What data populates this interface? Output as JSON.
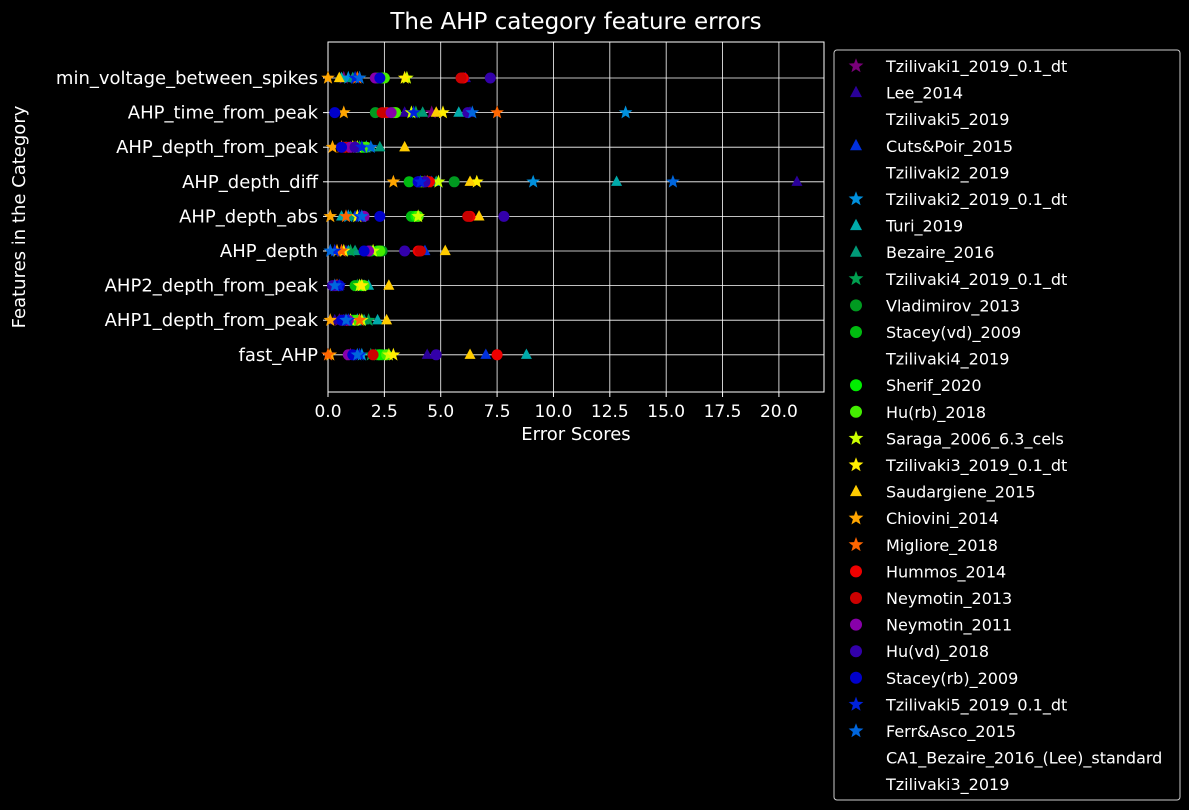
{
  "chart_data": {
    "type": "scatter",
    "title": "The AHP category feature errors",
    "xlabel": "Error Scores",
    "ylabel": "Features in the Category",
    "xlim": [
      0,
      22
    ],
    "xticks": [
      "0.0",
      "2.5",
      "5.0",
      "7.5",
      "10.0",
      "12.5",
      "15.0",
      "17.5",
      "20.0"
    ],
    "grid": true,
    "legend_position": "right, outside plot",
    "categories": [
      "min_voltage_between_spikes",
      "AHP_time_from_peak",
      "AHP_depth_from_peak",
      "AHP_depth_diff",
      "AHP_depth_abs",
      "AHP_depth",
      "AHP2_depth_from_peak",
      "AHP1_depth_from_peak",
      "fast_AHP"
    ],
    "series": [
      {
        "name": "Tzilivaki1_2019_0.1_dt",
        "marker": "star",
        "color": "#7a007a",
        "values": [
          0.7,
          4.6,
          1.2,
          4.3,
          1.5,
          0.6,
          0.4,
          0.5,
          1.0
        ]
      },
      {
        "name": "Lee_2014",
        "marker": "triangle",
        "color": "#2a0099",
        "values": [
          6.1,
          3.4,
          1.0,
          20.8,
          1.6,
          0.8,
          0.5,
          0.3,
          4.4
        ]
      },
      {
        "name": "Tzilivaki5_2019",
        "marker": "none",
        "color": "#000000",
        "values": [
          null,
          null,
          null,
          null,
          null,
          null,
          null,
          null,
          null
        ]
      },
      {
        "name": "Cuts&Poir_2015",
        "marker": "triangle",
        "color": "#0030dd",
        "values": [
          1.2,
          6.3,
          0.8,
          4.6,
          1.2,
          4.3,
          0.3,
          0.7,
          7.0
        ]
      },
      {
        "name": "Tzilivaki2_2019",
        "marker": "none",
        "color": "#000000",
        "values": [
          null,
          null,
          null,
          null,
          null,
          null,
          null,
          null,
          null
        ]
      },
      {
        "name": "Tzilivaki2_2019_0.1_dt",
        "marker": "star",
        "color": "#0090dd",
        "values": [
          0.9,
          13.2,
          1.7,
          9.1,
          0.9,
          0.1,
          1.5,
          1.3,
          1.5
        ]
      },
      {
        "name": "Turi_2019",
        "marker": "triangle",
        "color": "#00aaaa",
        "values": [
          0.6,
          5.8,
          1.9,
          12.8,
          0.6,
          0.9,
          1.8,
          2.2,
          8.8
        ]
      },
      {
        "name": "Bezaire_2016",
        "marker": "triangle",
        "color": "#009a78",
        "values": [
          1.1,
          4.2,
          2.3,
          4.8,
          1.0,
          1.2,
          1.6,
          1.6,
          2.1
        ]
      },
      {
        "name": "Tzilivaki4_2019_0.1_dt",
        "marker": "star",
        "color": "#00a050",
        "values": [
          1.4,
          3.9,
          1.4,
          4.9,
          1.3,
          1.0,
          1.3,
          1.8,
          1.9
        ]
      },
      {
        "name": "Vladimirov_2013",
        "marker": "circle",
        "color": "#009a20",
        "values": [
          2.3,
          2.1,
          1.5,
          5.6,
          3.8,
          2.4,
          1.4,
          1.1,
          2.2
        ]
      },
      {
        "name": "Stacey(vd)_2009",
        "marker": "circle",
        "color": "#00bb10",
        "values": [
          2.2,
          2.6,
          1.3,
          3.6,
          3.7,
          1.9,
          1.2,
          1.0,
          2.4
        ]
      },
      {
        "name": "Tzilivaki4_2019",
        "marker": "none",
        "color": "#000000",
        "values": [
          null,
          null,
          null,
          null,
          null,
          null,
          null,
          null,
          null
        ]
      },
      {
        "name": "Sherif_2020",
        "marker": "circle",
        "color": "#00ee00",
        "values": [
          2.4,
          2.9,
          1.6,
          4.1,
          3.9,
          2.2,
          1.5,
          1.2,
          2.3
        ]
      },
      {
        "name": "Hu(rb)_2018",
        "marker": "circle",
        "color": "#44ee00",
        "values": [
          2.5,
          3.0,
          1.7,
          4.2,
          4.0,
          2.3,
          1.6,
          1.3,
          2.6
        ]
      },
      {
        "name": "Saraga_2006_6.3_cels",
        "marker": "star",
        "color": "#ccff00",
        "values": [
          3.5,
          3.7,
          1.3,
          4.9,
          4.0,
          2.0,
          1.4,
          1.5,
          2.7
        ]
      },
      {
        "name": "Tzilivaki3_2019_0.1_dt",
        "marker": "star",
        "color": "#ffee00",
        "values": [
          3.4,
          5.1,
          1.1,
          6.6,
          1.3,
          0.7,
          1.5,
          1.0,
          2.9
        ]
      },
      {
        "name": "Saudargiene_2015",
        "marker": "triangle",
        "color": "#ffcc00",
        "values": [
          0.5,
          4.8,
          3.4,
          6.3,
          6.7,
          5.2,
          2.7,
          2.6,
          6.3
        ]
      },
      {
        "name": "Chiovini_2014",
        "marker": "star",
        "color": "#ffa500",
        "values": [
          0.0,
          0.7,
          0.2,
          2.9,
          0.1,
          0.4,
          0.3,
          0.1,
          0.1
        ]
      },
      {
        "name": "Migliore_2018",
        "marker": "star",
        "color": "#ff6600",
        "values": [
          1.3,
          7.5,
          0.6,
          4.4,
          0.8,
          0.6,
          0.4,
          1.4,
          0.0
        ]
      },
      {
        "name": "Hummos_2014",
        "marker": "circle",
        "color": "#ee0000",
        "values": [
          6.0,
          2.6,
          0.7,
          4.5,
          6.3,
          4.0,
          0.4,
          0.6,
          7.5
        ]
      },
      {
        "name": "Neymotin_2013",
        "marker": "circle",
        "color": "#cc0000",
        "values": [
          5.9,
          2.4,
          0.9,
          4.3,
          6.2,
          4.1,
          0.5,
          0.8,
          2.0
        ]
      },
      {
        "name": "Neymotin_2011",
        "marker": "circle",
        "color": "#8800aa",
        "values": [
          2.1,
          2.8,
          1.0,
          4.0,
          1.6,
          1.8,
          0.3,
          0.9,
          0.9
        ]
      },
      {
        "name": "Hu(vd)_2018",
        "marker": "circle",
        "color": "#3300aa",
        "values": [
          7.2,
          6.2,
          1.2,
          4.3,
          7.8,
          3.4,
          0.2,
          0.7,
          4.8
        ]
      },
      {
        "name": "Stacey(rb)_2009",
        "marker": "circle",
        "color": "#0000cc",
        "values": [
          2.3,
          0.3,
          0.6,
          4.0,
          2.3,
          1.6,
          0.5,
          0.6,
          1.1
        ]
      },
      {
        "name": "Tzilivaki5_2019_0.1_dt",
        "marker": "star",
        "color": "#0022dd",
        "values": [
          1.2,
          3.8,
          1.5,
          4.1,
          1.4,
          0.3,
          0.5,
          0.9,
          1.4
        ]
      },
      {
        "name": "Ferr&Asco_2015",
        "marker": "star",
        "color": "#0066dd",
        "values": [
          1.4,
          6.4,
          1.9,
          15.3,
          1.5,
          0.1,
          0.3,
          0.8,
          1.3
        ]
      },
      {
        "name": "CA1_Bezaire_2016_(Lee)_standard",
        "marker": "none",
        "color": "#000000",
        "values": [
          null,
          null,
          null,
          null,
          null,
          null,
          null,
          null,
          null
        ]
      },
      {
        "name": "Tzilivaki3_2019",
        "marker": "none",
        "color": "#000000",
        "values": [
          null,
          null,
          null,
          null,
          null,
          null,
          null,
          null,
          null
        ]
      }
    ]
  }
}
